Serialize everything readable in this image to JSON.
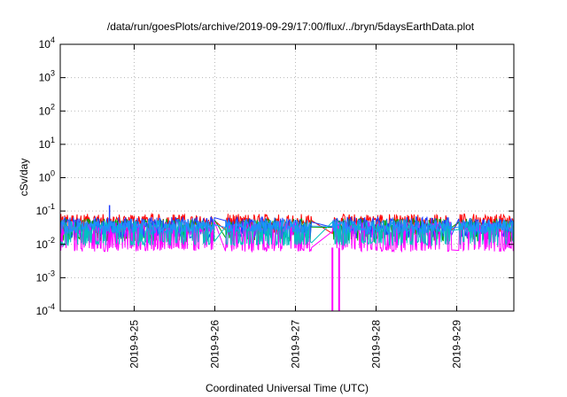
{
  "chart_data": {
    "type": "line",
    "title": "/data/run/goesPlots/archive/2019-09-29/17:00/flux/../bryn/5daysEarthData.plot",
    "xlabel": "Coordinated Universal Time (UTC)",
    "ylabel": "cSv/day",
    "y_scale": "log",
    "ylim": [
      0.0001,
      10000
    ],
    "xlim": [
      "2019-09-24 02:00",
      "2019-09-29 17:00"
    ],
    "grid": true,
    "y_ticks": [
      {
        "value": 0.0001,
        "base": "10",
        "exp": "-4"
      },
      {
        "value": 0.001,
        "base": "10",
        "exp": "-3"
      },
      {
        "value": 0.01,
        "base": "10",
        "exp": "-2"
      },
      {
        "value": 0.1,
        "base": "10",
        "exp": "-1"
      },
      {
        "value": 1,
        "base": "10",
        "exp": "0"
      },
      {
        "value": 10,
        "base": "10",
        "exp": "1"
      },
      {
        "value": 100,
        "base": "10",
        "exp": "2"
      },
      {
        "value": 1000,
        "base": "10",
        "exp": "3"
      },
      {
        "value": 10000,
        "base": "10",
        "exp": "4"
      }
    ],
    "x_ticks": [
      "2019-9-25",
      "2019-9-26",
      "2019-9-27",
      "2019-9-28",
      "2019-9-29"
    ],
    "gaps": [
      {
        "start": "2019-09-26 00:00",
        "end": "2019-09-26 03:00"
      },
      {
        "start": "2019-09-27 05:00",
        "end": "2019-09-27 11:00"
      },
      {
        "start": "2019-09-28 22:30",
        "end": "2019-09-29 00:30"
      }
    ],
    "dropouts": [
      {
        "time": "2019-09-27 11:00",
        "min": 0.0001
      },
      {
        "time": "2019-09-27 13:00",
        "min": 0.0001
      }
    ],
    "series": [
      {
        "color": "#ff0000",
        "base": 0.055,
        "spread": 0.35,
        "dip_min": 0.02
      },
      {
        "color": "#00a000",
        "base": 0.04,
        "spread": 0.35,
        "dip_min": 0.012
      },
      {
        "color": "#1f3cff",
        "base": 0.045,
        "spread": 0.35,
        "dip_min": 0.015
      },
      {
        "color": "#ff00ff",
        "base": 0.03,
        "spread": 0.4,
        "dip_min": 0.006
      },
      {
        "color": "#00c0c0",
        "base": 0.035,
        "spread": 0.35,
        "dip_min": 0.009
      },
      {
        "color": "#1e90ff",
        "base": 0.04,
        "spread": 0.3,
        "dip_min": 0.02
      }
    ],
    "peaks": [
      {
        "time": "2019-09-24 16:40",
        "value": 0.15
      }
    ]
  }
}
